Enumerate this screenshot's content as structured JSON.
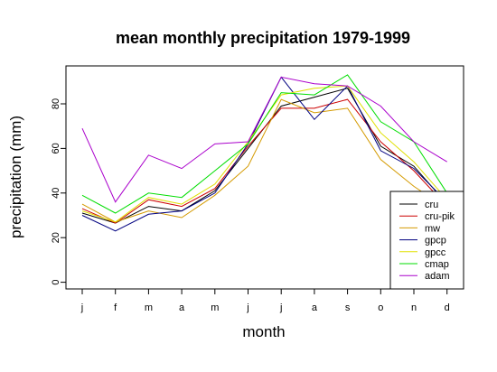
{
  "chart_data": {
    "type": "line",
    "title": "mean monthly precipitation 1979-1999",
    "xlabel": "month",
    "ylabel": "precipitation (mm)",
    "categories": [
      "j",
      "f",
      "m",
      "a",
      "m",
      "j",
      "j",
      "a",
      "s",
      "o",
      "n",
      "d"
    ],
    "y_ticks": [
      0,
      20,
      40,
      60,
      80
    ],
    "ylim": [
      -3,
      97
    ],
    "grid": false,
    "legend_position": "bottom-right",
    "series": [
      {
        "name": "cru",
        "color": "#000000",
        "values": [
          31,
          26.5,
          34,
          32,
          41,
          60,
          79,
          83,
          87,
          61,
          52,
          35
        ]
      },
      {
        "name": "cru-pik",
        "color": "#cc0000",
        "values": [
          33,
          26.5,
          37,
          34,
          42,
          61,
          78,
          78,
          82,
          63,
          50,
          34
        ]
      },
      {
        "name": "mw",
        "color": "#d49a00",
        "values": [
          35,
          27,
          32,
          29,
          39,
          52,
          82,
          76,
          78,
          55,
          43,
          33
        ]
      },
      {
        "name": "gpcp",
        "color": "#000080",
        "values": [
          30,
          23,
          30.5,
          32,
          40,
          62,
          92,
          73,
          88,
          59,
          51,
          36
        ]
      },
      {
        "name": "gpcc",
        "color": "#e0e000",
        "values": [
          32,
          27,
          38,
          35,
          44,
          63,
          84,
          87,
          88,
          67,
          54,
          37
        ]
      },
      {
        "name": "cmap",
        "color": "#00dd00",
        "values": [
          39,
          31,
          40,
          38,
          50,
          62,
          85,
          84,
          93,
          72,
          63,
          40
        ]
      },
      {
        "name": "adam",
        "color": "#aa00cc",
        "values": [
          69,
          36,
          57,
          51,
          62,
          63,
          92,
          89,
          88,
          79,
          63,
          54
        ]
      }
    ]
  }
}
